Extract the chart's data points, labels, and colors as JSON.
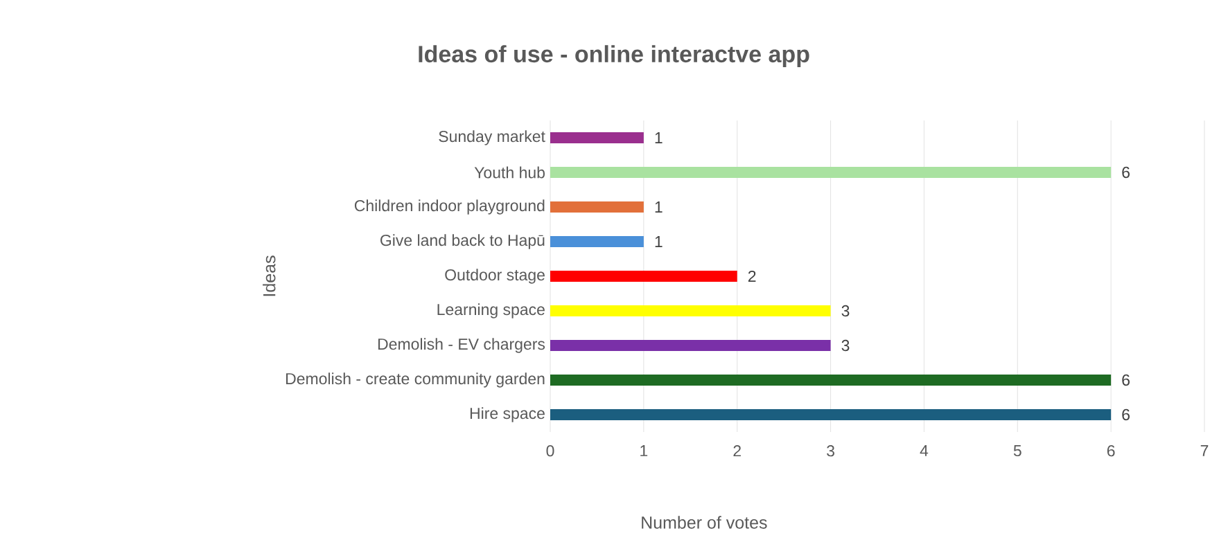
{
  "chart_data": {
    "type": "bar",
    "orientation": "horizontal",
    "title": "Ideas of use - online interactve app",
    "xlabel": "Number of votes",
    "ylabel": "Ideas",
    "categories": [
      "Sunday market",
      "Youth hub",
      "Children indoor playground",
      "Give land back to Hapū",
      "Outdoor stage",
      "Learning space",
      "Demolish - EV chargers",
      "Demolish - create community garden",
      "Hire space"
    ],
    "values": [
      1,
      6,
      1,
      1,
      2,
      3,
      3,
      6,
      6
    ],
    "colors": [
      "#9a2f8e",
      "#a9e2a0",
      "#e2703a",
      "#4a90d9",
      "#ff0000",
      "#ffff00",
      "#7a30a8",
      "#1e6b23",
      "#1b5e7f"
    ],
    "xlim": [
      0,
      7
    ],
    "xticks": [
      0,
      1,
      2,
      3,
      4,
      5,
      6,
      7
    ],
    "grid": "x",
    "data_labels": true
  }
}
